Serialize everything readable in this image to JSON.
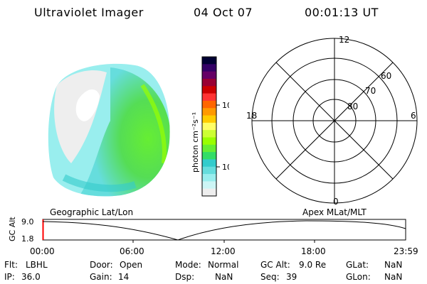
{
  "header": {
    "title": "Ultraviolet Imager",
    "date": "04 Oct 07",
    "time": "00:01:13 UT"
  },
  "colorbar": {
    "label": "photon cm⁻²s⁻¹",
    "ticks": [
      "100",
      "10"
    ],
    "scale": "log",
    "colors": [
      "#000033",
      "#330066",
      "#660066",
      "#990033",
      "#cc0000",
      "#ff3333",
      "#ff6600",
      "#ff9900",
      "#ffcc00",
      "#ffff66",
      "#ccff33",
      "#99ff00",
      "#66ee33",
      "#33dd66",
      "#33cccc",
      "#66dddd",
      "#99eeee",
      "#ccf5f5",
      "#eeeeee"
    ]
  },
  "polar": {
    "labels": {
      "top": "12",
      "left": "18",
      "right": "6",
      "bottom": "0"
    },
    "rings": [
      "60",
      "70",
      "80"
    ]
  },
  "timeline": {
    "ylabel": "GC Alt",
    "yticks": [
      "9.0",
      "1.8"
    ],
    "left_caption": "Geographic Lat/Lon",
    "right_caption": "Apex  MLat/MLT",
    "xticks": [
      "00:00",
      "06:00",
      "12:00",
      "18:00",
      "23:59"
    ]
  },
  "info": {
    "flt_label": "Flt:",
    "flt_value": "LBHL",
    "ip_label": "IP:",
    "ip_value": "36.0",
    "door_label": "Door:",
    "door_value": "Open",
    "gain_label": "Gain:",
    "gain_value": "14",
    "mode_label": "Mode:",
    "mode_value": "Normal",
    "dsp_label": "Dsp:",
    "dsp_value": "NaN",
    "gcalt_label": "GC Alt:",
    "gcalt_value": "9.0 Re",
    "seq_label": "Seq:",
    "seq_value": "39",
    "glat_label": "GLat:",
    "glat_value": "NaN",
    "glon_label": "GLon:",
    "glon_value": "NaN"
  }
}
